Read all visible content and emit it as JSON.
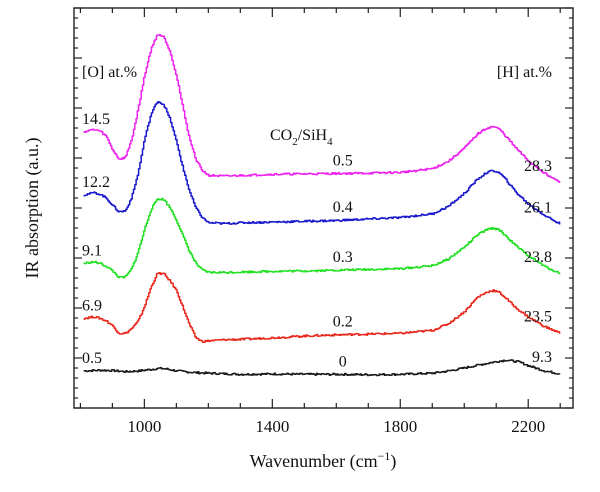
{
  "chart_data": {
    "type": "line",
    "title": "",
    "xlabel": "Wavenumber (cm−1)",
    "xlabel_main": "Wavenumber (cm",
    "xlabel_sup": "−1",
    "xlabel_close": ")",
    "ylabel": "IR absorption (a.u.)",
    "xlim": [
      780,
      2340
    ],
    "ylim": [
      0,
      10
    ],
    "xticks": [
      1000,
      1400,
      1800,
      2200
    ],
    "grid": false,
    "legend_title": "CO2/SiH4",
    "legend_title_parts": {
      "a": "CO",
      "a_sub": "2",
      "b": "/SiH",
      "b_sub": "4"
    },
    "left_header": "[O] at.%",
    "right_header": "[H] at.%",
    "series": [
      {
        "name": "0",
        "color": "#1a1a1a",
        "o_label": "0.5",
        "h_label": "9.3",
        "x": [
          810,
          860,
          900,
          940,
          980,
          1020,
          1045,
          1070,
          1100,
          1150,
          1200,
          1300,
          1400,
          1500,
          1600,
          1700,
          1800,
          1900,
          1950,
          2000,
          2050,
          2100,
          2130,
          2170,
          2200,
          2250,
          2300
        ],
        "y": [
          0.72,
          0.74,
          0.73,
          0.7,
          0.72,
          0.76,
          0.79,
          0.77,
          0.72,
          0.68,
          0.66,
          0.63,
          0.64,
          0.63,
          0.63,
          0.62,
          0.63,
          0.66,
          0.72,
          0.8,
          0.89,
          0.97,
          1.01,
          0.96,
          0.86,
          0.72,
          0.64
        ]
      },
      {
        "name": "0.2",
        "color": "#e8281c",
        "o_label": "6.9",
        "h_label": "23.5",
        "x": [
          810,
          840,
          860,
          880,
          900,
          920,
          940,
          960,
          980,
          1000,
          1020,
          1040,
          1060,
          1080,
          1100,
          1120,
          1140,
          1160,
          1180,
          1200,
          1250,
          1300,
          1400,
          1500,
          1600,
          1700,
          1800,
          1900,
          1950,
          2000,
          2040,
          2070,
          2090,
          2110,
          2130,
          2160,
          2200,
          2250,
          2300
        ],
        "y": [
          2.12,
          2.16,
          2.12,
          2.05,
          1.92,
          1.72,
          1.72,
          1.85,
          2.05,
          2.45,
          2.95,
          3.32,
          3.3,
          3.1,
          2.85,
          2.4,
          1.95,
          1.6,
          1.5,
          1.52,
          1.55,
          1.56,
          1.6,
          1.65,
          1.68,
          1.7,
          1.72,
          1.8,
          1.98,
          2.3,
          2.68,
          2.82,
          2.86,
          2.8,
          2.65,
          2.4,
          2.15,
          1.9,
          1.72
        ]
      },
      {
        "name": "0.3",
        "color": "#22e022",
        "o_label": "9.1",
        "h_label": "23.8",
        "x": [
          810,
          840,
          860,
          880,
          900,
          920,
          940,
          960,
          980,
          1000,
          1020,
          1040,
          1060,
          1080,
          1100,
          1120,
          1140,
          1160,
          1180,
          1200,
          1250,
          1300,
          1400,
          1500,
          1600,
          1700,
          1800,
          1900,
          1950,
          2000,
          2040,
          2070,
          2090,
          2110,
          2130,
          2160,
          2200,
          2250,
          2300
        ],
        "y": [
          3.58,
          3.62,
          3.58,
          3.5,
          3.38,
          3.2,
          3.22,
          3.45,
          3.9,
          4.5,
          5.02,
          5.3,
          5.28,
          5.05,
          4.72,
          4.3,
          3.9,
          3.58,
          3.4,
          3.34,
          3.34,
          3.35,
          3.37,
          3.38,
          3.4,
          3.42,
          3.44,
          3.52,
          3.7,
          4.02,
          4.34,
          4.48,
          4.52,
          4.46,
          4.3,
          4.05,
          3.78,
          3.5,
          3.3
        ]
      },
      {
        "name": "0.4",
        "color": "#1a1acc",
        "o_label": "12.2",
        "h_label": "26.1",
        "x": [
          810,
          840,
          860,
          880,
          900,
          920,
          940,
          960,
          980,
          1000,
          1020,
          1040,
          1060,
          1080,
          1100,
          1120,
          1140,
          1160,
          1180,
          1200,
          1250,
          1300,
          1400,
          1500,
          1600,
          1700,
          1800,
          1900,
          1950,
          2000,
          2040,
          2070,
          2090,
          2110,
          2130,
          2160,
          2200,
          2250,
          2300
        ],
        "y": [
          5.4,
          5.46,
          5.42,
          5.32,
          5.12,
          4.95,
          4.98,
          5.35,
          6.0,
          6.9,
          7.55,
          7.9,
          7.8,
          7.4,
          6.8,
          6.1,
          5.5,
          5.05,
          4.8,
          4.66,
          4.64,
          4.66,
          4.68,
          4.7,
          4.72,
          4.76,
          4.8,
          4.9,
          5.1,
          5.45,
          5.82,
          6.0,
          6.05,
          5.98,
          5.8,
          5.48,
          5.15,
          4.86,
          4.62
        ]
      },
      {
        "name": "0.5",
        "color": "#ee22ee",
        "o_label": "14.5",
        "h_label": "28.3",
        "x": [
          810,
          840,
          860,
          880,
          900,
          920,
          940,
          960,
          980,
          1000,
          1020,
          1040,
          1060,
          1080,
          1100,
          1120,
          1140,
          1160,
          1180,
          1200,
          1250,
          1300,
          1400,
          1500,
          1600,
          1700,
          1800,
          1900,
          1950,
          2000,
          2040,
          2070,
          2090,
          2110,
          2130,
          2160,
          2200,
          2250,
          2300
        ],
        "y": [
          7.08,
          7.14,
          7.1,
          6.96,
          6.6,
          6.35,
          6.4,
          6.9,
          7.7,
          8.6,
          9.28,
          9.68,
          9.6,
          9.2,
          8.55,
          7.7,
          6.9,
          6.35,
          6.05,
          5.92,
          5.9,
          5.92,
          5.95,
          5.96,
          5.97,
          5.98,
          6.0,
          6.1,
          6.3,
          6.65,
          7.02,
          7.18,
          7.22,
          7.14,
          6.95,
          6.65,
          6.3,
          5.98,
          5.72
        ]
      }
    ]
  }
}
